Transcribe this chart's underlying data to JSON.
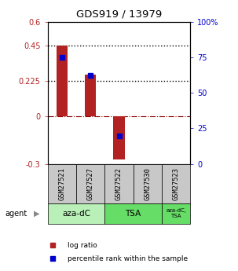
{
  "title": "GDS919 / 13979",
  "samples": [
    "GSM27521",
    "GSM27527",
    "GSM27522",
    "GSM27530",
    "GSM27523"
  ],
  "log_ratios": [
    0.45,
    0.265,
    -0.27,
    0.0,
    0.0
  ],
  "percentile_ranks_pct": [
    75,
    62,
    20,
    0,
    0
  ],
  "has_data": [
    true,
    true,
    true,
    false,
    false
  ],
  "ylim_left": [
    -0.3,
    0.6
  ],
  "ylim_right": [
    0,
    100
  ],
  "left_ticks": [
    -0.3,
    0,
    0.225,
    0.45,
    0.6
  ],
  "left_tick_labels": [
    "-0.3",
    "0",
    "0.225",
    "0.45",
    "0.6"
  ],
  "right_ticks": [
    0,
    25,
    50,
    75,
    100
  ],
  "right_tick_labels": [
    "0",
    "25",
    "50",
    "75",
    "100%"
  ],
  "hlines_dotted": [
    0.45,
    0.225
  ],
  "hline_dashed": 0,
  "bar_color": "#b22222",
  "dot_color": "#0000cc",
  "bar_width": 0.4,
  "legend_log_ratio": "log ratio",
  "legend_percentile": "percentile rank within the sample",
  "plot_bg_color": "#ffffff",
  "sample_box_color": "#c8c8c8",
  "agent_box_color1": "#b8f0b8",
  "agent_box_color2": "#66dd66"
}
